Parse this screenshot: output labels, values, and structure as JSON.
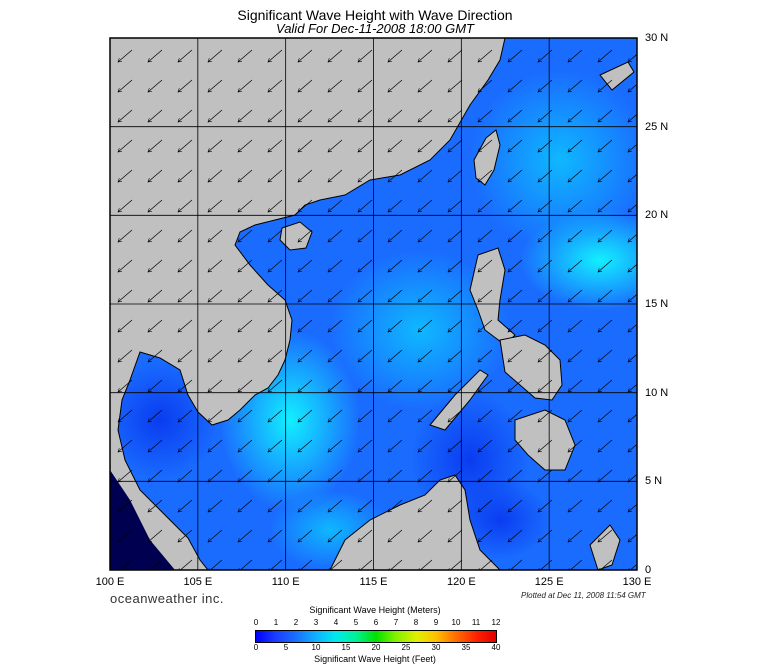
{
  "title": "Significant Wave Height with Wave Direction",
  "subtitle": "Valid For Dec-11-2008 18:00 GMT",
  "brand": "oceanweather inc.",
  "plotted": "Plotted at Dec 11, 2008 11:54 GMT",
  "map": {
    "lon_range": [
      100,
      130
    ],
    "lat_range": [
      0,
      30
    ],
    "lon_labels": [
      "100 E",
      "105 E",
      "110 E",
      "115 E",
      "120 E",
      "125 E",
      "130 E"
    ],
    "lat_labels": [
      "30 N",
      "25 N",
      "20 N",
      "15 N",
      "10 N",
      "5 N",
      "0"
    ],
    "grid_step_deg": 5,
    "land_color": "#c0c0c0",
    "arrow_direction": "toward southwest"
  },
  "colorbar": {
    "meters_title": "Significant Wave Height (Meters)",
    "feet_title": "Significant Wave Height (Feet)",
    "meters_ticks": [
      "0",
      "1",
      "2",
      "3",
      "4",
      "5",
      "6",
      "7",
      "8",
      "9",
      "10",
      "11",
      "12"
    ],
    "feet_ticks": [
      "0",
      "5",
      "10",
      "15",
      "20",
      "25",
      "30",
      "35",
      "40"
    ]
  }
}
